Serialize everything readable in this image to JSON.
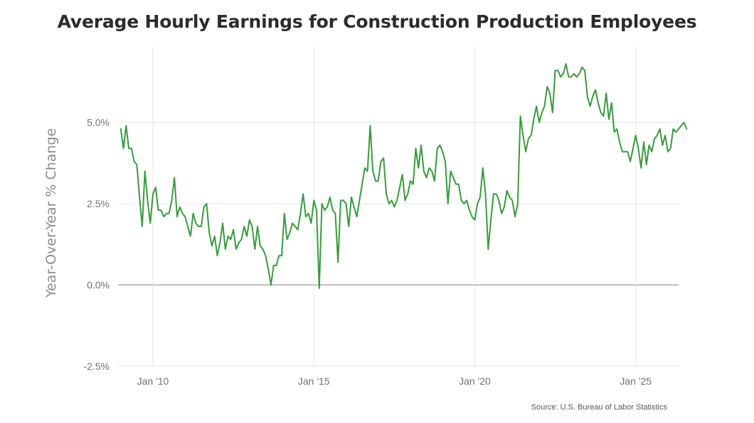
{
  "chart_data": {
    "type": "line",
    "title": "Average Hourly Earnings for Construction Production Employees",
    "ylabel": "Year-Over-Year % Change",
    "xlabel": "",
    "source": "Source: U.S. Bureau of Labor Statistics",
    "ylim": [
      -2.5,
      7.5
    ],
    "xlim": [
      "2008-12",
      "2026-05"
    ],
    "x_ticks": [
      "2010-01",
      "2015-01",
      "2020-01",
      "2025-01"
    ],
    "x_tick_labels": [
      "Jan '10",
      "Jan '15",
      "Jan '20",
      "Jan '25"
    ],
    "y_ticks": [
      -2.5,
      0,
      2.5,
      5
    ],
    "y_tick_labels": [
      "-2.5%",
      "0.0%",
      "2.5%",
      "5.0%"
    ],
    "grid": true,
    "line_color": "#3a9a3e",
    "zero_line_color": "#9a9a9a",
    "series": [
      {
        "x_start": "2009-01",
        "frequency": "monthly",
        "values": [
          4.8,
          4.2,
          4.9,
          4.2,
          4.2,
          3.8,
          3.7,
          2.7,
          1.8,
          3.5,
          2.6,
          1.9,
          2.8,
          3.0,
          2.3,
          2.3,
          2.1,
          2.2,
          2.2,
          2.6,
          3.3,
          2.1,
          2.4,
          2.2,
          2.1,
          1.8,
          1.5,
          2.2,
          1.9,
          1.8,
          1.8,
          2.4,
          2.5,
          1.6,
          1.2,
          1.5,
          0.9,
          1.3,
          1.9,
          1.1,
          1.5,
          1.4,
          1.7,
          1.1,
          1.3,
          1.4,
          1.8,
          1.5,
          2.0,
          1.8,
          1.1,
          1.8,
          1.2,
          1.1,
          0.9,
          0.5,
          0.0,
          0.6,
          0.6,
          0.9,
          0.9,
          2.2,
          1.4,
          1.6,
          1.9,
          1.8,
          1.7,
          2.2,
          2.8,
          2.1,
          2.2,
          1.9,
          2.6,
          2.3,
          -0.1,
          2.5,
          2.3,
          2.4,
          2.7,
          2.3,
          2.2,
          0.7,
          2.6,
          2.6,
          2.5,
          1.8,
          2.7,
          2.4,
          2.1,
          2.6,
          3.1,
          3.6,
          3.5,
          4.9,
          3.5,
          3.2,
          3.2,
          3.8,
          3.9,
          2.8,
          2.5,
          2.6,
          2.4,
          2.6,
          3.0,
          3.4,
          2.6,
          2.8,
          3.2,
          3.1,
          4.2,
          3.6,
          4.3,
          3.5,
          3.3,
          3.6,
          3.5,
          3.2,
          4.2,
          4.3,
          4.1,
          3.8,
          2.5,
          3.5,
          3.3,
          3.1,
          3.1,
          2.6,
          2.5,
          2.6,
          2.3,
          2.1,
          2.0,
          2.5,
          2.7,
          3.6,
          2.8,
          1.1,
          2.0,
          2.8,
          2.8,
          2.6,
          2.2,
          2.4,
          2.9,
          2.7,
          2.6,
          2.1,
          2.5,
          5.2,
          4.6,
          4.1,
          4.5,
          4.6,
          5.1,
          5.5,
          5.0,
          5.3,
          5.5,
          6.1,
          5.9,
          5.3,
          6.6,
          6.6,
          6.4,
          6.5,
          6.8,
          6.4,
          6.4,
          6.5,
          6.4,
          6.5,
          6.7,
          6.6,
          5.8,
          5.5,
          5.8,
          6.0,
          5.6,
          5.3,
          5.2,
          5.9,
          5.1,
          5.6,
          4.7,
          4.8,
          4.4,
          4.1,
          4.1,
          4.1,
          3.8,
          4.2,
          4.6,
          4.2,
          3.6,
          4.4,
          3.7,
          4.3,
          4.1,
          4.5,
          4.6,
          4.8,
          4.3,
          4.6,
          4.1,
          4.2,
          4.8,
          4.7,
          4.8,
          4.9,
          5.0,
          4.8
        ]
      }
    ]
  }
}
